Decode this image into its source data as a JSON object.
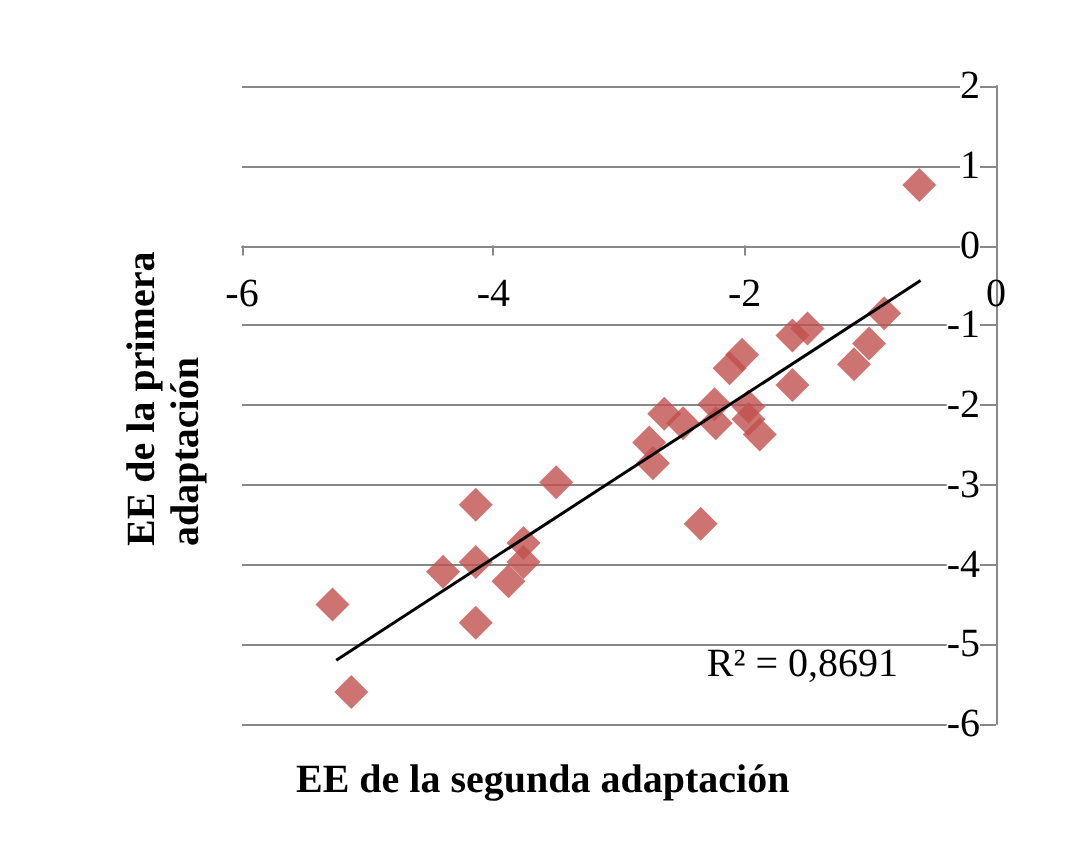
{
  "chart_data": {
    "type": "scatter",
    "xlabel": "EE de la segunda adaptación",
    "ylabel": "EE de la primera adaptación",
    "annotations": [
      "R² = 0,8691"
    ],
    "marker": "diamond",
    "grid": "y",
    "xlim": [
      -6,
      0
    ],
    "ylim": [
      -6,
      2
    ],
    "xticks": [
      -6,
      -4,
      -2,
      0
    ],
    "yticks": [
      -6,
      -5,
      -4,
      -3,
      -2,
      -1,
      0,
      1,
      2
    ],
    "series": [
      {
        "color": "#c0504d",
        "x": [
          -0.61,
          -0.89,
          -1.01,
          -1.13,
          -1.5,
          -1.62,
          -1.62,
          -2.02,
          -2.12,
          -2.24,
          -1.97,
          -1.97,
          -1.88,
          -2.23,
          -2.64,
          -2.49,
          -2.76,
          -2.73,
          -2.35,
          -3.5,
          -4.14,
          -3.76,
          -3.76,
          -4.14,
          -4.4,
          -3.88,
          -5.28,
          -4.14,
          -5.13
        ],
        "values": [
          0.76,
          -0.85,
          -1.23,
          -1.49,
          -1.04,
          -1.13,
          -1.75,
          -1.37,
          -1.54,
          -1.99,
          -2.02,
          -2.18,
          -2.37,
          -2.23,
          -2.11,
          -2.23,
          -2.47,
          -2.73,
          -3.49,
          -2.97,
          -3.25,
          -3.73,
          -3.97,
          -3.97,
          -4.09,
          -4.21,
          -4.5,
          -4.73,
          -5.6
        ]
      },
      {
        "type": "line",
        "color": "#000000",
        "marker": "none",
        "x": [
          -5.25,
          -0.6
        ],
        "values": [
          -5.2,
          -0.44
        ]
      }
    ]
  }
}
